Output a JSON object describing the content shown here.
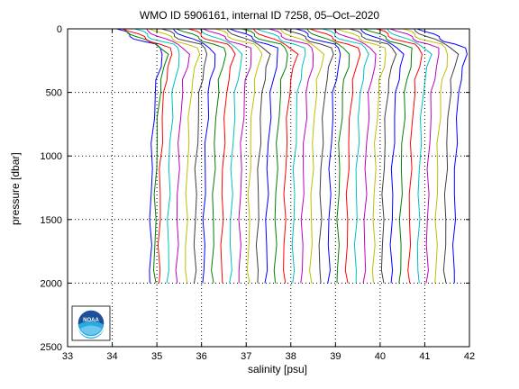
{
  "chart_data": {
    "type": "line",
    "title": "WMO ID 5906161, internal ID 7258, 05–Oct–2020",
    "xlabel": "salinity [psu]",
    "ylabel": "pressure [dbar]",
    "xlim": [
      33,
      42
    ],
    "ylim": [
      0,
      2500
    ],
    "y_reversed": true,
    "grid": true,
    "xticks": [
      "33",
      "34",
      "35",
      "36",
      "37",
      "38",
      "39",
      "40",
      "41",
      "42"
    ],
    "yticks": [
      "0",
      "500",
      "1000",
      "1500",
      "2000",
      "2500"
    ],
    "profile_pressure": [
      0,
      20,
      40,
      60,
      80,
      100,
      120,
      150,
      200,
      300,
      400,
      500,
      700,
      900,
      1100,
      1300,
      1500,
      1700,
      1900,
      2000
    ],
    "deep_salinity_at_2000": [
      34.85,
      34.95,
      35.05,
      35.25,
      35.45,
      35.65,
      35.85,
      36.05,
      36.25,
      36.45,
      36.65,
      36.85,
      37.05,
      37.25,
      37.45,
      37.65,
      37.85,
      38.05,
      38.25,
      38.45,
      38.65,
      38.85,
      39.05,
      39.25,
      39.45,
      39.65,
      39.85,
      40.05,
      40.25,
      40.45,
      40.65,
      40.85,
      41.05,
      41.25,
      41.45,
      41.65
    ],
    "profile_shape_offsets": [
      -0.75,
      -0.62,
      -0.5,
      -0.4,
      -0.3,
      -0.15,
      0.05,
      0.2,
      0.28,
      0.22,
      0.15,
      0.11,
      0.08,
      0.05,
      0.03,
      0.02,
      0.01,
      0.005,
      0.0,
      0.0
    ],
    "colors": [
      "#0000ff",
      "#008000",
      "#ff0000",
      "#00bfbf",
      "#bf00bf",
      "#bfbf00",
      "#404040"
    ],
    "logo_text": "NOAA"
  }
}
